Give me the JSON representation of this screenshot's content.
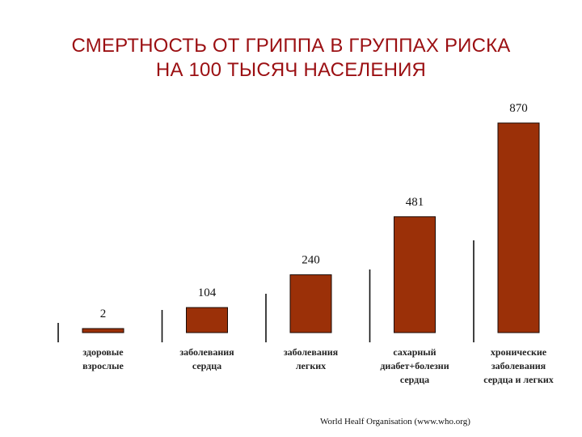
{
  "title": {
    "line1": "СМЕРТНОСТЬ ОТ ГРИППА В ГРУППАХ РИСКА",
    "line2": "НА 100 ТЫСЯЧ НАСЕЛЕНИЯ"
  },
  "source": "World Healf Organisation (www.who.org)",
  "colors": {
    "title": "#9b0f12",
    "bar": "#9b3008",
    "axis_line": "#111111"
  },
  "chart_data": {
    "type": "bar",
    "title": "СМЕРТНОСТЬ ОТ ГРИППА В ГРУППАХ РИСКА НА 100 ТЫСЯЧ НАСЕЛЕНИЯ",
    "categories": [
      "здоровые взрослые",
      "заболевания сердца",
      "заболевания легких",
      "сахарный диабет+болезни сердца",
      "хронические заболевания сердца и легких"
    ],
    "category_lines": [
      [
        "здоровые",
        "взрослые"
      ],
      [
        "заболевания",
        "сердца"
      ],
      [
        "заболевания",
        "легких"
      ],
      [
        "сахарный",
        "диабет+болезни",
        "сердца"
      ],
      [
        "хронические",
        "заболевания",
        "сердца и легких"
      ]
    ],
    "values": [
      2,
      104,
      240,
      481,
      870
    ],
    "data_labels": [
      "2",
      "104",
      "240",
      "481",
      "870"
    ],
    "xlabel": "",
    "ylabel": "",
    "legend": "none",
    "grid": false
  }
}
